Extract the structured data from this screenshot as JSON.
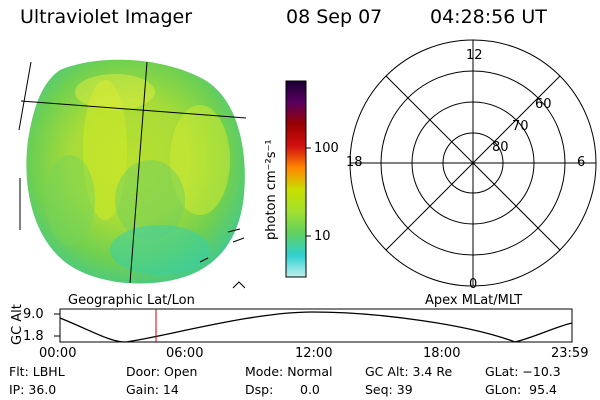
{
  "header": {
    "instrument": "Ultraviolet Imager",
    "date": "08 Sep 07",
    "time": "04:28:56 UT"
  },
  "left_panel": {
    "caption": "Geographic Lat/Lon"
  },
  "colorbar": {
    "unit_label": "photon cm⁻²s⁻¹",
    "ticks": [
      "100",
      "10"
    ],
    "colors": [
      "#1a0033",
      "#5a0060",
      "#9a0000",
      "#d21010",
      "#ff8800",
      "#c8e000",
      "#a0e030",
      "#60d060",
      "#30d0d0",
      "#c0f0f0"
    ]
  },
  "polar_plot": {
    "caption": "Apex MLat/MLT",
    "mlt_labels": [
      "12",
      "18",
      "6",
      "0"
    ],
    "lat_labels": [
      "60",
      "70",
      "80"
    ]
  },
  "altitude_plot": {
    "ylabel": "GC Alt",
    "yticks": [
      "9.0",
      "1.8"
    ],
    "xticks": [
      "00:00",
      "06:00",
      "12:00",
      "18:00",
      "23:59"
    ],
    "current_time_marker": "04:28:56"
  },
  "footer": {
    "row1": {
      "flt": "Flt: LBHL",
      "door": "Door: Open",
      "mode": "Mode: Normal",
      "gcalt": "GC Alt: 3.4 Re",
      "glat": "GLat: −10.3"
    },
    "row2": {
      "ip": "IP: 36.0",
      "gain": "Gain: 14",
      "dsp_label": "Dsp:",
      "dsp_value": "0.0",
      "seq": "Seq: 39",
      "glon": "GLon:  95.4"
    }
  }
}
